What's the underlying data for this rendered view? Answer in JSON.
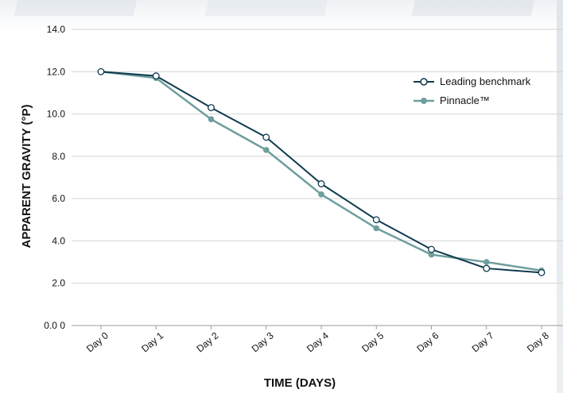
{
  "chart_data": {
    "type": "line",
    "title": "",
    "xlabel": "TIME (DAYS)",
    "ylabel": "APPARENT GRAVITY (°P)",
    "categories": [
      "Day 0",
      "Day 1",
      "Day 2",
      "Day 3",
      "Day 4",
      "Day 5",
      "Day 6",
      "Day 7",
      "Day 8"
    ],
    "yticks": [
      "0.0 0",
      "2.0",
      "4.0",
      "6.0",
      "8.0",
      "10.0",
      "12.0",
      "14.0"
    ],
    "ylim": [
      0,
      14
    ],
    "grid": "horizontal",
    "legend_position": "top-right",
    "series": [
      {
        "name": "Leading benchmark",
        "color": "#0f3a4e",
        "marker": "open-circle",
        "values": [
          12.0,
          11.8,
          10.3,
          8.9,
          6.7,
          5.0,
          3.6,
          2.7,
          2.5
        ]
      },
      {
        "name": "Pinnacle™",
        "color": "#6f9e9e",
        "marker": "filled-circle",
        "values": [
          12.0,
          11.7,
          9.75,
          8.3,
          6.2,
          4.6,
          3.35,
          3.0,
          2.6
        ]
      }
    ]
  }
}
